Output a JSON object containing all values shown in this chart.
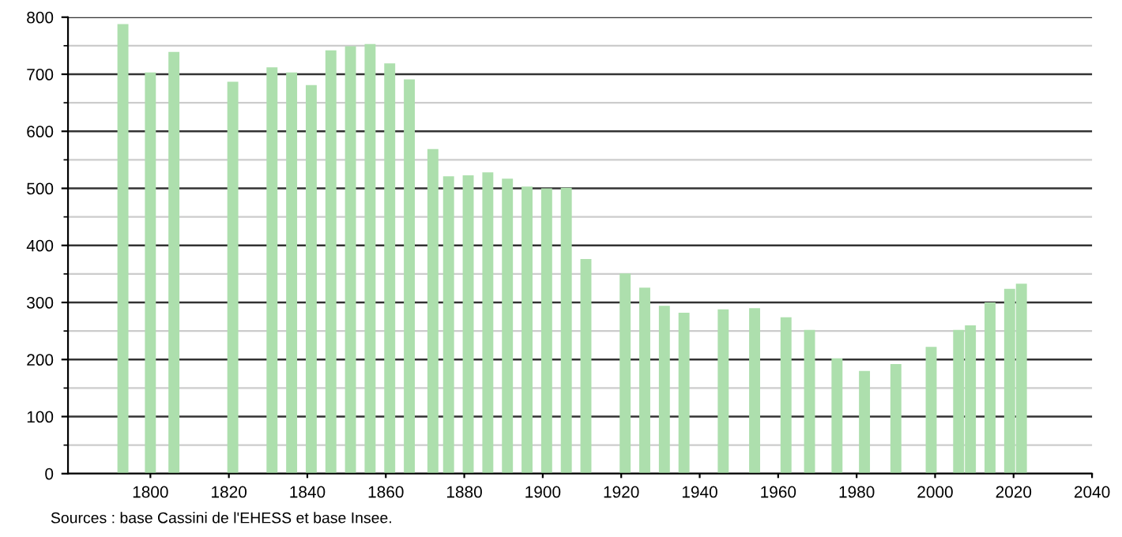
{
  "chart_data": {
    "type": "bar",
    "x": [
      1793,
      1800,
      1806,
      1821,
      1831,
      1836,
      1841,
      1846,
      1851,
      1856,
      1861,
      1866,
      1872,
      1876,
      1881,
      1886,
      1891,
      1896,
      1901,
      1906,
      1911,
      1921,
      1926,
      1931,
      1936,
      1946,
      1954,
      1962,
      1968,
      1975,
      1982,
      1990,
      1999,
      2006,
      2009,
      2014,
      2019,
      2022
    ],
    "values": [
      788,
      703,
      739,
      687,
      712,
      703,
      681,
      742,
      749,
      753,
      719,
      691,
      569,
      521,
      523,
      528,
      517,
      503,
      500,
      501,
      376,
      351,
      326,
      294,
      282,
      288,
      290,
      274,
      252,
      202,
      180,
      192,
      222,
      252,
      260,
      300,
      324,
      333
    ],
    "color": "#addfad",
    "xlim": [
      1779,
      2040
    ],
    "xticks": [
      1800,
      1820,
      1840,
      1860,
      1880,
      1900,
      1920,
      1940,
      1960,
      1980,
      2000,
      2020,
      2040
    ],
    "ylim": [
      0,
      800
    ],
    "yticks": [
      0,
      {
        "value": 50,
        "label": null
      },
      100,
      {
        "value": 150,
        "label": null
      },
      200,
      {
        "value": 250,
        "label": null
      },
      300,
      {
        "value": 350,
        "label": null
      },
      400,
      {
        "value": 450,
        "label": null
      },
      500,
      {
        "value": 550,
        "label": null
      },
      600,
      {
        "value": 650,
        "label": null
      },
      700,
      {
        "value": 750,
        "label": null
      },
      800
    ],
    "grid": "y",
    "annotations": [
      "Sources : base Cassini de l'EHESS et base Insee."
    ]
  }
}
